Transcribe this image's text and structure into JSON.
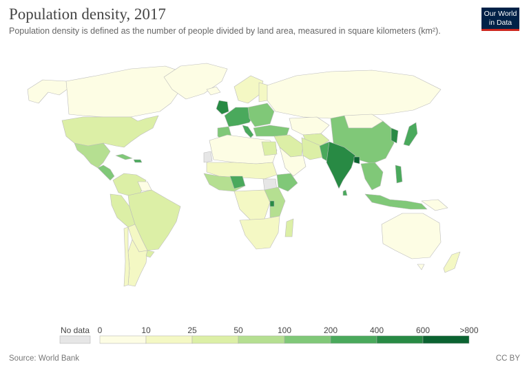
{
  "header": {
    "title": "Population density, 2017",
    "subtitle": "Population density is defined as the number of people divided by land area, measured in square kilometers (km²)."
  },
  "logo": {
    "line1": "Our World",
    "line2": "in Data"
  },
  "legend": {
    "no_data_label": "No data",
    "no_data_color": "#e6e6e6",
    "ticks": [
      "0",
      "10",
      "25",
      "50",
      "100",
      "200",
      "400",
      "600",
      ">800"
    ],
    "colors": [
      "#fdfde4",
      "#f4f8c4",
      "#dcefa6",
      "#b5df91",
      "#80c878",
      "#4aa95c",
      "#288a44",
      "#0b6331"
    ]
  },
  "footer": {
    "source": "Source: World Bank",
    "license": "CC BY"
  }
}
